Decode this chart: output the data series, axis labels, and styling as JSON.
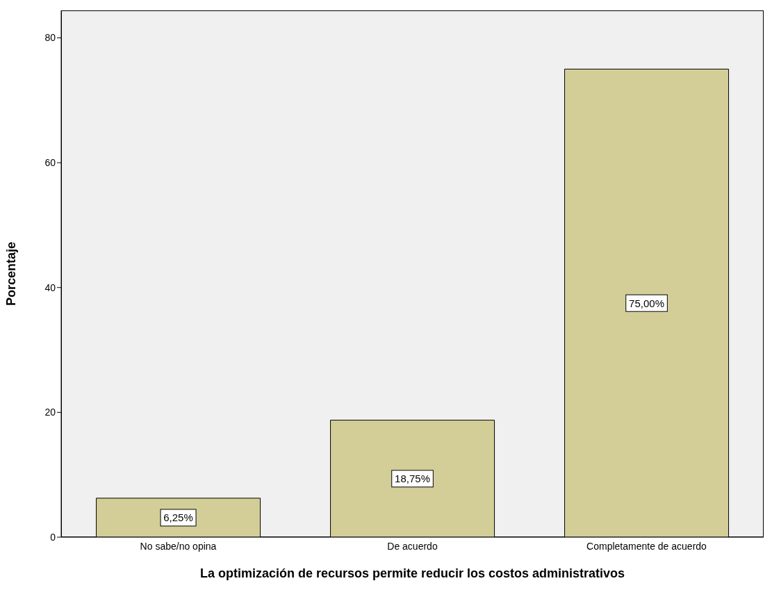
{
  "chart_data": {
    "type": "bar",
    "xlabel": "La optimización de recursos permite reducir los costos administrativos",
    "ylabel": "Porcentaje",
    "categories": [
      "No sabe/no opina",
      "De acuerdo",
      "Completamente de acuerdo"
    ],
    "values": [
      6.25,
      18.75,
      75
    ],
    "value_labels": [
      "6,25%",
      "18,75%",
      "75,00%"
    ],
    "color": "#d3ce97",
    "ylim": [
      0,
      84.4
    ],
    "yticks": [
      0,
      20,
      40,
      60,
      80
    ]
  }
}
